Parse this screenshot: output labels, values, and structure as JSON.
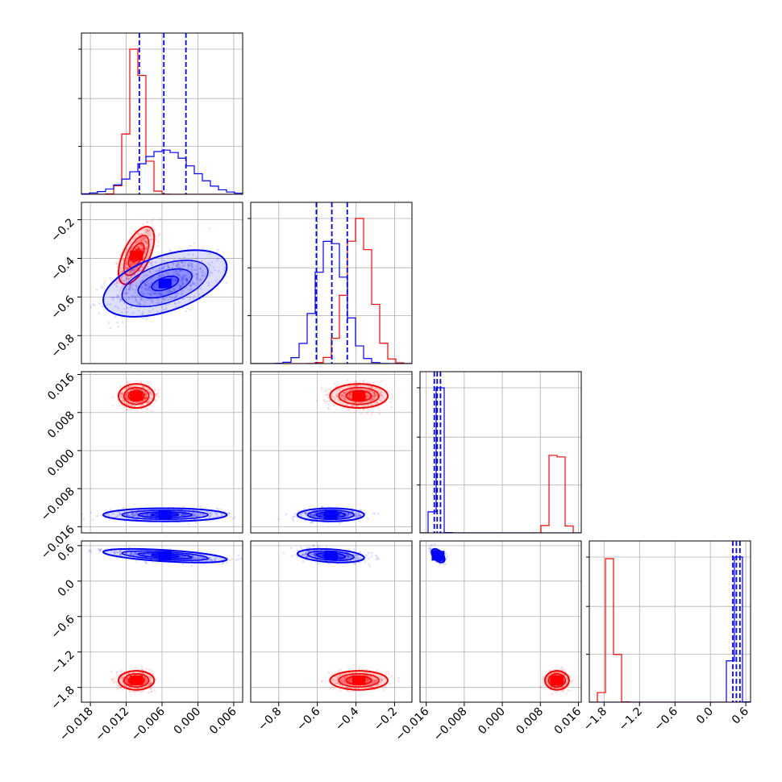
{
  "chart_data": {
    "type": "corner",
    "variables": [
      {
        "ticks": [
          -0.018,
          -0.012,
          -0.006,
          0.0,
          0.006
        ],
        "tick_labels": [
          "−0.018",
          "−0.012",
          "−0.006",
          "0.000",
          "0.006"
        ],
        "range": [
          -0.0195,
          0.0075
        ]
      },
      {
        "ticks": [
          -0.8,
          -0.6,
          -0.4,
          -0.2
        ],
        "tick_labels": [
          "−0.8",
          "−0.6",
          "−0.4",
          "−0.2"
        ],
        "range": [
          -0.945,
          -0.11
        ]
      },
      {
        "ticks": [
          -0.016,
          -0.008,
          0.0,
          0.008,
          0.016
        ],
        "tick_labels": [
          "−0.016",
          "−0.008",
          "0.000",
          "0.008",
          "0.016"
        ],
        "range": [
          -0.0173,
          0.0166
        ]
      },
      {
        "ticks": [
          -1.8,
          -1.2,
          -0.6,
          0.0,
          0.6
        ],
        "tick_labels": [
          "−1.8",
          "−1.2",
          "−0.6",
          "0.0",
          "0.6"
        ],
        "range": [
          -2.05,
          0.68
        ]
      }
    ],
    "series": [
      {
        "color": "#ff0000",
        "mean": [
          -0.0103,
          -0.385,
          0.0115,
          -1.68
        ],
        "std": [
          0.0013,
          0.065,
          0.0011,
          0.07
        ],
        "corr": [
          [
            0,
            1,
            0.6
          ]
        ]
      },
      {
        "color": "#0000ff",
        "mean": [
          -0.0055,
          -0.53,
          -0.0135,
          0.43
        ],
        "std": [
          0.0045,
          0.075,
          0.0006,
          0.05
        ],
        "corr": [
          [
            0,
            1,
            0.5
          ],
          [
            0,
            3,
            -0.55
          ],
          [
            1,
            3,
            -0.3
          ],
          [
            2,
            3,
            -0.5
          ]
        ]
      }
    ],
    "quantile_lines": [
      {
        "variable": 0,
        "values": [
          -0.0098,
          -0.0057,
          -0.002
        ],
        "color": "#0000ff"
      },
      {
        "variable": 1,
        "values": [
          -0.605,
          -0.525,
          -0.445
        ],
        "color": "#0000ff"
      },
      {
        "variable": 2,
        "values": [
          -0.0143,
          -0.0137,
          -0.013
        ],
        "color": "#0000ff"
      },
      {
        "variable": 3,
        "values": [
          0.38,
          0.44,
          0.5
        ],
        "color": "#0000ff"
      }
    ],
    "grid": true
  }
}
